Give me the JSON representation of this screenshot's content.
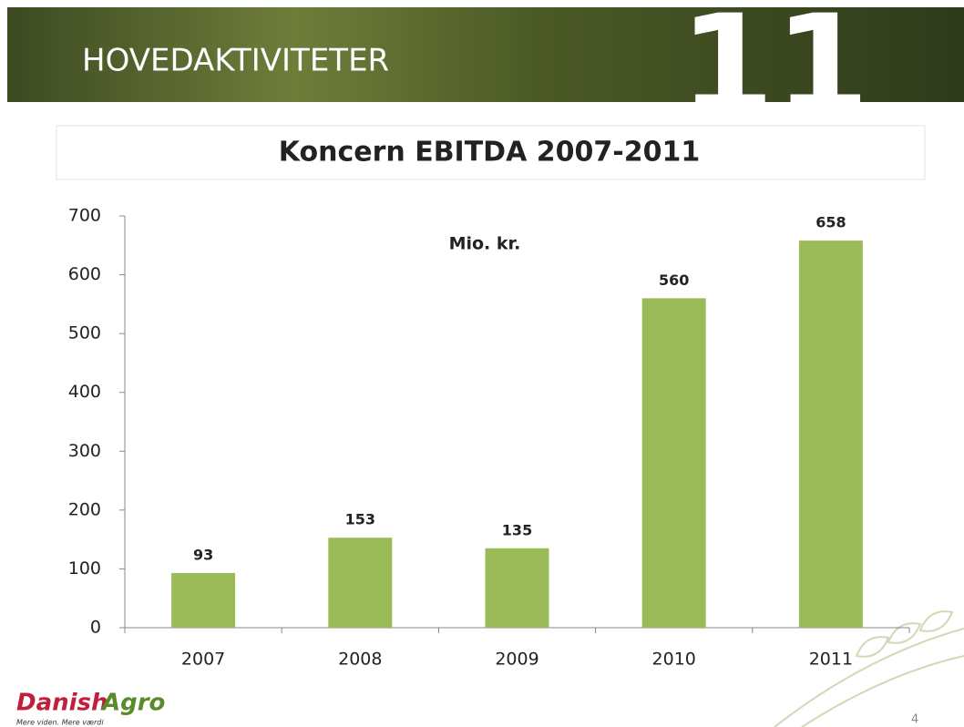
{
  "chart_data": {
    "type": "bar",
    "slide_title": "HOVEDAKTIVITETER",
    "badge": "11",
    "title": "Koncern EBITDA 2007-2011",
    "annotation": "Mio. kr.",
    "categories": [
      "2007",
      "2008",
      "2009",
      "2010",
      "2011"
    ],
    "values": [
      93,
      153,
      135,
      560,
      658
    ],
    "color": "#9bbb59",
    "ylim": [
      0,
      700
    ],
    "yticks": [
      0,
      100,
      200,
      300,
      400,
      500,
      600,
      700
    ],
    "grid": false,
    "logo_word1": "Danish",
    "logo_word2": "Agro",
    "tagline": "Mere viden. Mere værdi",
    "page_number": "4"
  }
}
